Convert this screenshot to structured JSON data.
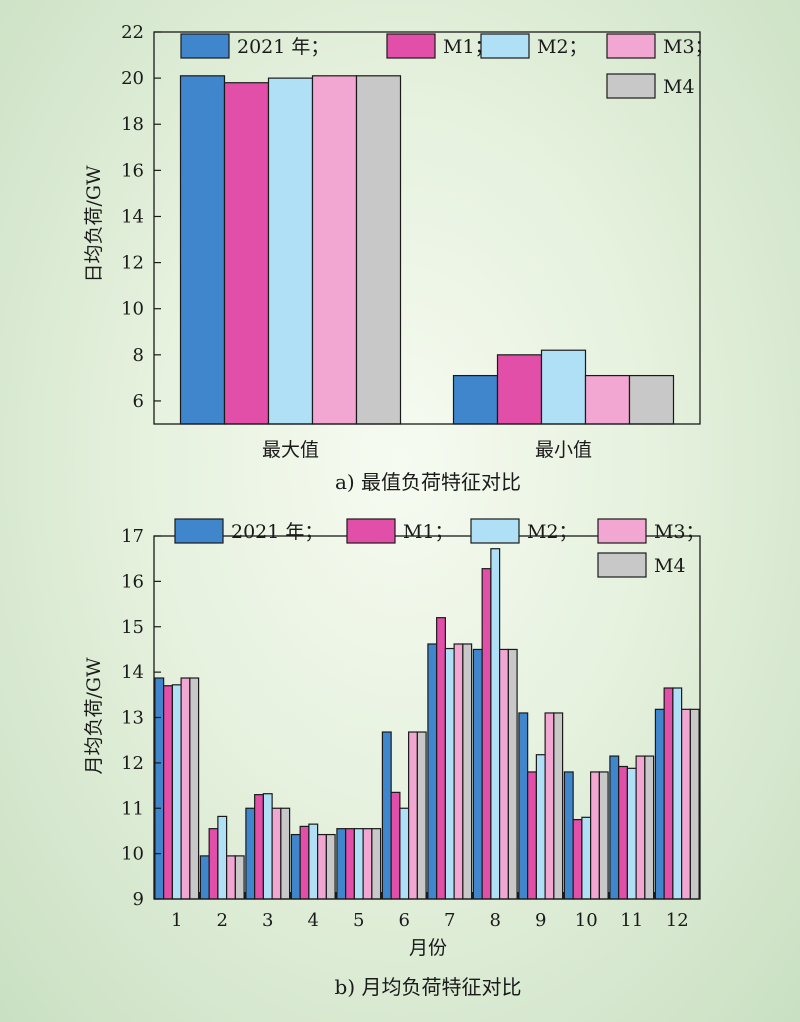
{
  "colors": {
    "2021": "#3f86cc",
    "M1": "#e14fa8",
    "M2": "#b0e0f5",
    "M3": "#f2a6d2",
    "M4": "#c8c8c8"
  },
  "chart_data": [
    {
      "type": "bar",
      "caption": "a) 最值负荷特征对比",
      "ylabel": "日均负荷/GW",
      "xlabel": "",
      "ylim": [
        5,
        22
      ],
      "yticks": [
        6,
        8,
        10,
        12,
        14,
        16,
        18,
        20,
        22
      ],
      "categories": [
        "最大值",
        "最小值"
      ],
      "legend": [
        "2021 年；",
        "M1；",
        "M2；",
        "M3；",
        "M4"
      ],
      "series": [
        {
          "name": "2021 年",
          "color_key": "2021",
          "values": [
            20.1,
            7.1
          ]
        },
        {
          "name": "M1",
          "color_key": "M1",
          "values": [
            19.8,
            8.0
          ]
        },
        {
          "name": "M2",
          "color_key": "M2",
          "values": [
            20.0,
            8.2
          ]
        },
        {
          "name": "M3",
          "color_key": "M3",
          "values": [
            20.1,
            7.1
          ]
        },
        {
          "name": "M4",
          "color_key": "M4",
          "values": [
            20.1,
            7.1
          ]
        }
      ]
    },
    {
      "type": "bar",
      "caption": "b) 月均负荷特征对比",
      "ylabel": "月均负荷/GW",
      "xlabel": "月份",
      "ylim": [
        9,
        17
      ],
      "yticks": [
        9,
        10,
        11,
        12,
        13,
        14,
        15,
        16,
        17
      ],
      "categories": [
        "1",
        "2",
        "3",
        "4",
        "5",
        "6",
        "7",
        "8",
        "9",
        "10",
        "11",
        "12"
      ],
      "legend": [
        "2021 年；",
        "M1；",
        "M2；",
        "M3；",
        "M4"
      ],
      "series": [
        {
          "name": "2021 年",
          "color_key": "2021",
          "values": [
            13.87,
            9.95,
            11.0,
            10.42,
            10.55,
            12.68,
            14.62,
            14.5,
            13.1,
            11.8,
            12.15,
            13.18
          ]
        },
        {
          "name": "M1",
          "color_key": "M1",
          "values": [
            13.7,
            10.55,
            11.3,
            10.6,
            10.55,
            11.35,
            15.2,
            16.28,
            11.8,
            10.75,
            11.92,
            13.65
          ]
        },
        {
          "name": "M2",
          "color_key": "M2",
          "values": [
            13.72,
            10.82,
            11.32,
            10.65,
            10.55,
            11.0,
            14.52,
            16.72,
            12.18,
            10.8,
            11.88,
            13.65
          ]
        },
        {
          "name": "M3",
          "color_key": "M3",
          "values": [
            13.87,
            9.95,
            11.0,
            10.42,
            10.55,
            12.68,
            14.62,
            14.5,
            13.1,
            11.8,
            12.15,
            13.18
          ]
        },
        {
          "name": "M4",
          "color_key": "M4",
          "values": [
            13.87,
            9.95,
            11.0,
            10.42,
            10.55,
            12.68,
            14.62,
            14.5,
            13.1,
            11.8,
            12.15,
            13.18
          ]
        }
      ]
    }
  ]
}
